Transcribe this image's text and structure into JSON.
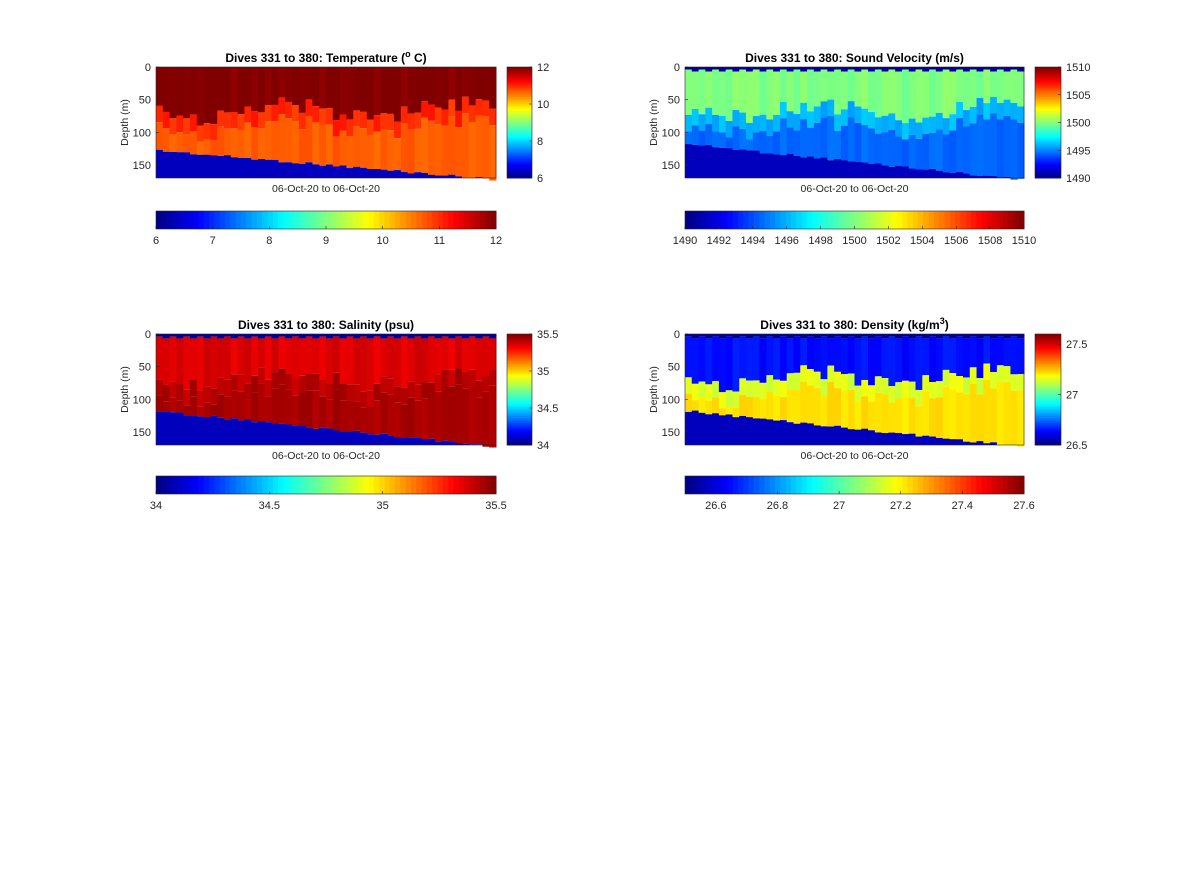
{
  "chart_data": [
    {
      "type": "heatmap",
      "title": "Dives 331 to 380: Temperature (",
      "title_sup": "o",
      "title_tail": " C)",
      "xlabel": "06-Oct-20 to 06-Oct-20",
      "ylabel": "Depth (m)",
      "y_ticks": [
        "0",
        "50",
        "100",
        "150"
      ],
      "ylim": [
        0,
        170
      ],
      "x": {
        "dive_start": 331,
        "dive_end": 380,
        "count": 50
      },
      "profile": {
        "surface_value": 12,
        "surface_depth": [
          0,
          55
        ],
        "mid_value": 11,
        "deep_value": 10.7,
        "bottom_value": 6,
        "bottom_depth_start": 128,
        "bottom_depth_end": 172,
        "surface_band_missing": false
      },
      "colorbar": {
        "min": 6,
        "max": 12,
        "tick_labels": [
          "6",
          "8",
          "10",
          "12"
        ]
      },
      "horizontal_colorbar": {
        "min": 6,
        "max": 12,
        "tick_labels": [
          "6",
          "7",
          "8",
          "9",
          "10",
          "11",
          "12"
        ]
      }
    },
    {
      "type": "heatmap",
      "title": "Dives 331 to 380: Sound Velocity (m/s)",
      "title_sup": "",
      "title_tail": "",
      "xlabel": "06-Oct-20 to 06-Oct-20",
      "ylabel": "Depth (m)",
      "y_ticks": [
        "0",
        "50",
        "100",
        "150"
      ],
      "ylim": [
        0,
        170
      ],
      "x": {
        "dive_start": 331,
        "dive_end": 380,
        "count": 50
      },
      "profile": {
        "surface_value": 1500,
        "surface_depth": [
          0,
          55
        ],
        "mid_value": 1496,
        "deep_value": 1494.5,
        "bottom_value": 1490,
        "bottom_depth_start": 118,
        "bottom_depth_end": 172,
        "surface_band_missing": true
      },
      "colorbar": {
        "min": 1490,
        "max": 1510,
        "tick_labels": [
          "1490",
          "1495",
          "1500",
          "1505",
          "1510"
        ]
      },
      "horizontal_colorbar": {
        "min": 1490,
        "max": 1510,
        "tick_labels": [
          "1490",
          "1492",
          "1494",
          "1496",
          "1498",
          "1500",
          "1502",
          "1504",
          "1506",
          "1508",
          "1510"
        ]
      }
    },
    {
      "type": "heatmap",
      "title": "Dives 331 to 380: Salinity (psu)",
      "title_sup": "",
      "title_tail": "",
      "xlabel": "06-Oct-20 to 06-Oct-20",
      "ylabel": "Depth (m)",
      "y_ticks": [
        "0",
        "50",
        "100",
        "150"
      ],
      "ylim": [
        0,
        170
      ],
      "x": {
        "dive_start": 331,
        "dive_end": 380,
        "count": 50
      },
      "profile": {
        "surface_value": 35.36,
        "surface_depth": [
          0,
          55
        ],
        "mid_value": 35.42,
        "deep_value": 35.44,
        "bottom_value": 34,
        "bottom_depth_start": 118,
        "bottom_depth_end": 172,
        "surface_band_missing": true
      },
      "colorbar": {
        "min": 34,
        "max": 35.5,
        "tick_labels": [
          "34",
          "34.5",
          "35",
          "35.5"
        ]
      },
      "horizontal_colorbar": {
        "min": 34,
        "max": 35.5,
        "tick_labels": [
          "34",
          "34.5",
          "35",
          "35.5"
        ]
      }
    },
    {
      "type": "heatmap",
      "title": "Dives 331 to 380: Density (kg/m",
      "title_sup": "3",
      "title_tail": ")",
      "xlabel": "06-Oct-20 to 06-Oct-20",
      "ylabel": "Depth (m)",
      "y_ticks": [
        "0",
        "50",
        "100",
        "150"
      ],
      "ylim": [
        0,
        170
      ],
      "x": {
        "dive_start": 331,
        "dive_end": 380,
        "count": 50
      },
      "profile": {
        "surface_value": 26.65,
        "surface_depth": [
          0,
          55
        ],
        "mid_value": 27.15,
        "deep_value": 27.22,
        "bottom_value": 26.5,
        "bottom_depth_start": 118,
        "bottom_depth_end": 172,
        "surface_band_missing": true
      },
      "colorbar": {
        "min": 26.5,
        "max": 27.6,
        "tick_labels": [
          "26.5",
          "27",
          "27.5"
        ],
        "tick_values": [
          26.5,
          27,
          27.5
        ]
      },
      "horizontal_colorbar": {
        "min": 26.5,
        "max": 27.6,
        "tick_labels": [
          "26.6",
          "26.8",
          "27",
          "27.2",
          "27.4",
          "27.6"
        ],
        "tick_values": [
          26.6,
          26.8,
          27,
          27.2,
          27.4,
          27.6
        ]
      }
    }
  ]
}
